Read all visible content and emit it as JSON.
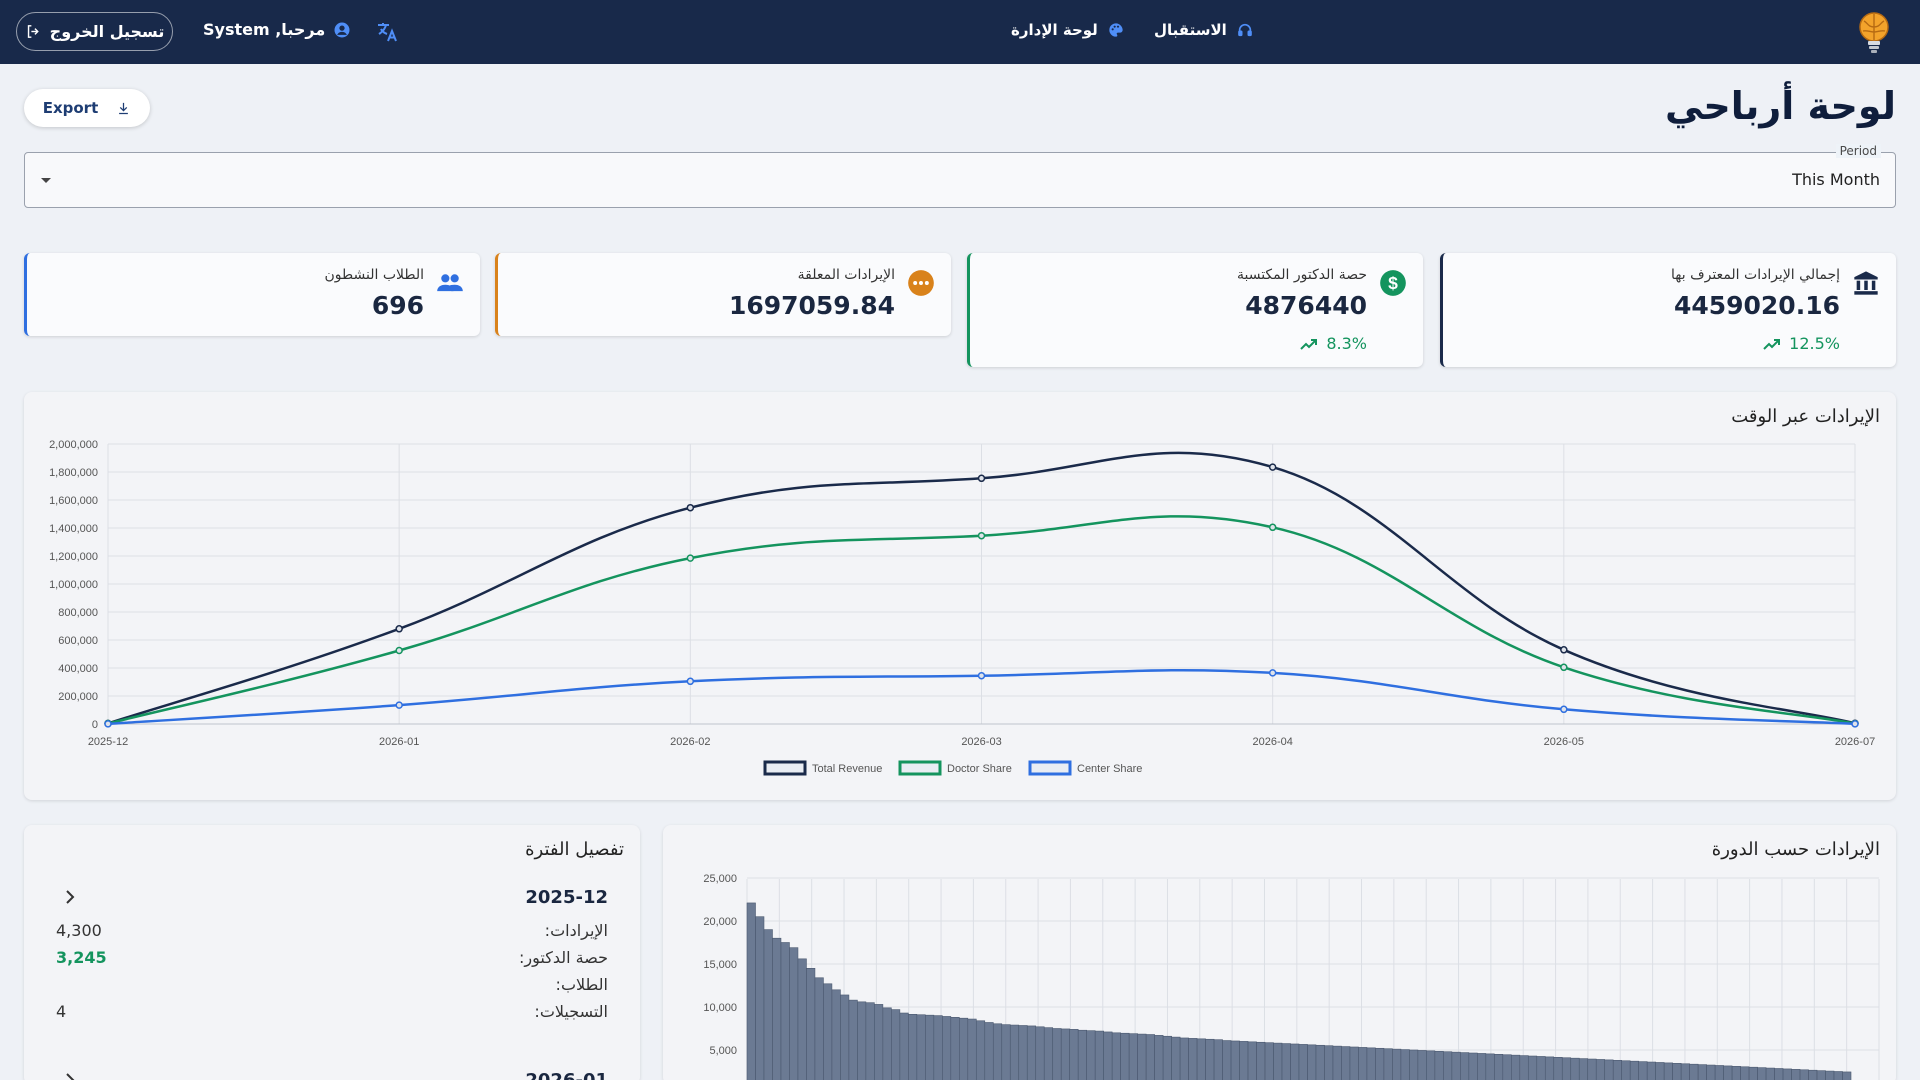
{
  "header": {
    "logout_label": "تسجيل الخروج",
    "welcome_text": "مرحبا, System",
    "nav": [
      {
        "label": "لوحة الإدارة",
        "icon": "palette-icon"
      },
      {
        "label": "الاستقبال",
        "icon": "headset-icon"
      }
    ]
  },
  "page": {
    "title": "لوحة أرباحي",
    "export_label": "Export"
  },
  "period_select": {
    "label": "Period",
    "value": "This Month"
  },
  "stats": [
    {
      "title": "إجمالي الإيرادات المعترف بها",
      "value": "4459020.16",
      "trend": "12.5%",
      "icon": "bank-icon",
      "accent": "#1a2a4a"
    },
    {
      "title": "حصة الدكتور المكتسبة",
      "value": "4876440",
      "trend": "8.3%",
      "icon": "dollar-icon",
      "accent": "#14945e"
    },
    {
      "title": "الإيرادات المعلقة",
      "value": "1697059.84",
      "icon": "pending-icon",
      "accent": "#d9821b"
    },
    {
      "title": "الطلاب النشطون",
      "value": "696",
      "icon": "people-icon",
      "accent": "#2f6fe0"
    }
  ],
  "revenue_chart": {
    "title": "الإيرادات عبر الوقت"
  },
  "course_chart": {
    "title": "الإيرادات حسب الدورة"
  },
  "breakdown": {
    "title": "تفصيل الفترة",
    "periods": [
      {
        "period": "2025-12",
        "revenue_label": "الإيرادات:",
        "revenue_value": "4,300",
        "doctor_label": "حصة الدكتور:",
        "doctor_value": "3,245",
        "students_label": "الطلاب:",
        "students_value": "",
        "enrollments_label": "التسجيلات:",
        "enrollments_value": "4"
      },
      {
        "period": "2026-01"
      }
    ]
  },
  "colors": {
    "navy": "#18294a",
    "total_revenue": "#1a2a4a",
    "doctor_share": "#14945e",
    "center_share": "#2f6fe0",
    "bars": "#6b7a93"
  },
  "chart_data": [
    {
      "type": "line",
      "x": [
        "2025-12",
        "2026-01",
        "2026-02",
        "2026-03",
        "2026-04",
        "2026-05",
        "2026-07"
      ],
      "series": [
        {
          "name": "Total Revenue",
          "values": [
            4300,
            680000,
            1545000,
            1755000,
            1835000,
            530000,
            5000
          ]
        },
        {
          "name": "Doctor Share",
          "values": [
            3245,
            525000,
            1185000,
            1345000,
            1405000,
            405000,
            3000
          ]
        },
        {
          "name": "Center Share",
          "values": [
            1055,
            135000,
            305000,
            345000,
            365000,
            105000,
            1000
          ]
        }
      ],
      "ylim": [
        0,
        2000000
      ],
      "yticks": [
        "0",
        "200,000",
        "400,000",
        "600,000",
        "800,000",
        "1,000,000",
        "1,200,000",
        "1,400,000",
        "1,600,000",
        "1,800,000",
        "2,000,000"
      ],
      "legend": "bottom",
      "grid": true
    },
    {
      "type": "bar",
      "values": [
        22100,
        20500,
        19000,
        18000,
        17500,
        16900,
        15600,
        14500,
        13400,
        12700,
        12000,
        11400,
        10800,
        10600,
        10500,
        10300,
        9900,
        9700,
        9300,
        9150,
        9100,
        9050,
        9000,
        8900,
        8800,
        8700,
        8600,
        8400,
        8200,
        8050,
        7950,
        7900,
        7850,
        7800,
        7700,
        7600,
        7500,
        7450,
        7400,
        7300,
        7250,
        7200,
        7100,
        7000,
        6950,
        6900,
        6850,
        6800,
        6700,
        6600,
        6500,
        6400,
        6350,
        6300,
        6250,
        6200,
        6100,
        6050,
        6000,
        5950,
        5900,
        5850,
        5800,
        5750,
        5700,
        5650,
        5600,
        5550,
        5500,
        5450,
        5400,
        5350,
        5300,
        5250,
        5200,
        5150,
        5100,
        5050,
        5000,
        4950,
        4900,
        4850,
        4800,
        4750,
        4700,
        4650,
        4600,
        4550,
        4500,
        4450,
        4400,
        4350,
        4300,
        4250,
        4200,
        4150,
        4100,
        4050,
        4000,
        3950,
        3900,
        3850,
        3800,
        3750,
        3700,
        3650,
        3600,
        3550,
        3500,
        3450,
        3400,
        3350,
        3300,
        3250,
        3200,
        3150,
        3100,
        3050,
        3000,
        2950,
        2900,
        2850,
        2800,
        2750,
        2700,
        2650,
        2600,
        2550,
        2500,
        2450
      ],
      "ylim": [
        0,
        25000
      ],
      "yticks": [
        "5,000",
        "10,000",
        "15,000",
        "20,000",
        "25,000"
      ],
      "grid": true
    }
  ]
}
